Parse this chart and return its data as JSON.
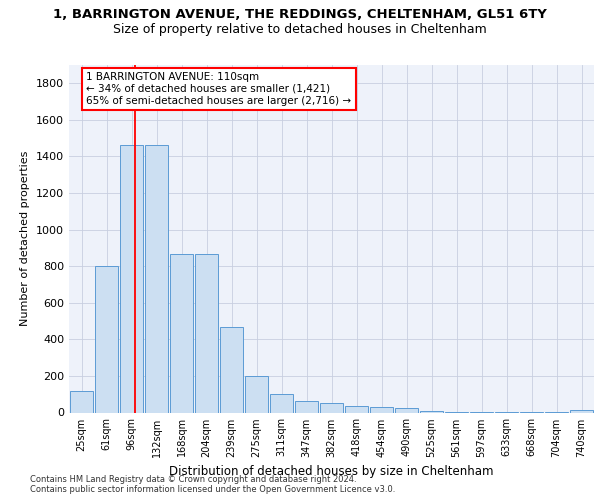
{
  "title1": "1, BARRINGTON AVENUE, THE REDDINGS, CHELTENHAM, GL51 6TY",
  "title2": "Size of property relative to detached houses in Cheltenham",
  "xlabel": "Distribution of detached houses by size in Cheltenham",
  "ylabel": "Number of detached properties",
  "bar_labels": [
    "25sqm",
    "61sqm",
    "96sqm",
    "132sqm",
    "168sqm",
    "204sqm",
    "239sqm",
    "275sqm",
    "311sqm",
    "347sqm",
    "382sqm",
    "418sqm",
    "454sqm",
    "490sqm",
    "525sqm",
    "561sqm",
    "597sqm",
    "633sqm",
    "668sqm",
    "704sqm",
    "740sqm"
  ],
  "bar_values": [
    120,
    800,
    1460,
    1460,
    865,
    865,
    470,
    200,
    100,
    65,
    50,
    38,
    28,
    22,
    10,
    4,
    3,
    2,
    1,
    1,
    15
  ],
  "bar_color": "#ccdff2",
  "bar_edge_color": "#5b9bd5",
  "red_line_x": 2.15,
  "annotation_text": "1 BARRINGTON AVENUE: 110sqm\n← 34% of detached houses are smaller (1,421)\n65% of semi-detached houses are larger (2,716) →",
  "ylim_max": 1900,
  "yticks": [
    0,
    200,
    400,
    600,
    800,
    1000,
    1200,
    1400,
    1600,
    1800
  ],
  "footer1": "Contains HM Land Registry data © Crown copyright and database right 2024.",
  "footer2": "Contains public sector information licensed under the Open Government Licence v3.0.",
  "bg_color": "#eef2fa",
  "grid_color": "#c8cfe0"
}
